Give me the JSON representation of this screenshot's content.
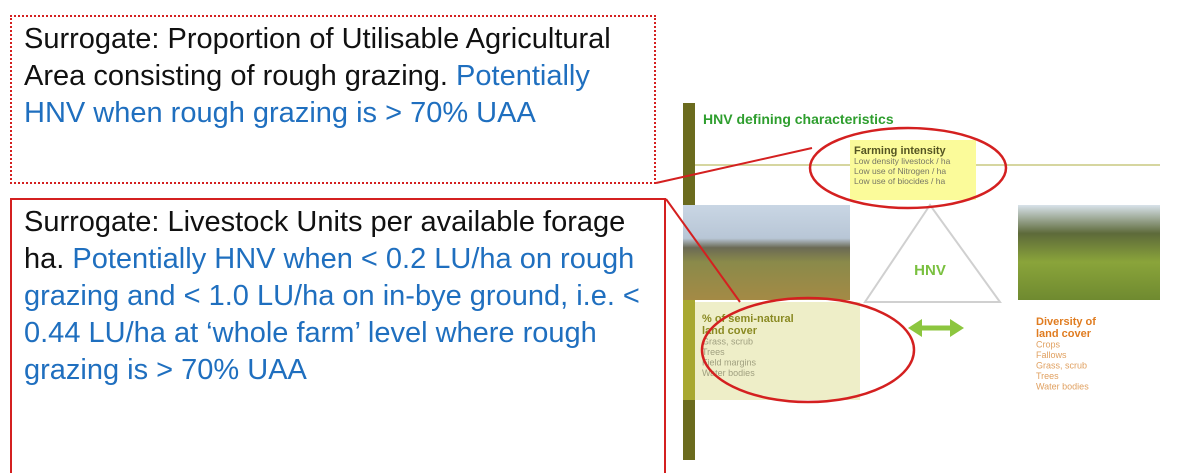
{
  "left_panel": {
    "boxes": [
      {
        "lead": "Surrogate: Proportion of Utilisable Agricultural Area consisting of rough grazing.",
        "detail": "Potentially HNV when rough grazing is > 70% UAA"
      },
      {
        "lead": "Surrogate: Livestock Units per available forage ha.",
        "detail": "Potentially HNV when < 0.2 LU/ha on rough grazing and < 1.0 LU/ha on in-bye ground, i.e. < 0.44 LU/ha at ‘whole farm’ level where rough grazing is > 70% UAA"
      }
    ]
  },
  "diagram": {
    "title": "HNV defining characteristics",
    "center_label": "HNV",
    "farming_intensity": {
      "heading": "Farming intensity",
      "items": [
        "Low density livestock / ha",
        "Low use of Nitrogen / ha",
        "Low use of biocides / ha"
      ]
    },
    "semi_natural": {
      "heading": "% of semi-natural land cover",
      "items": [
        "Grass, scrub",
        "Trees",
        "Field margins",
        "Water bodies"
      ]
    },
    "diversity": {
      "heading": "Diversity of land cover",
      "items": [
        "Crops",
        "Fallows",
        "Grass, scrub",
        "Trees",
        "Water bodies"
      ]
    }
  }
}
